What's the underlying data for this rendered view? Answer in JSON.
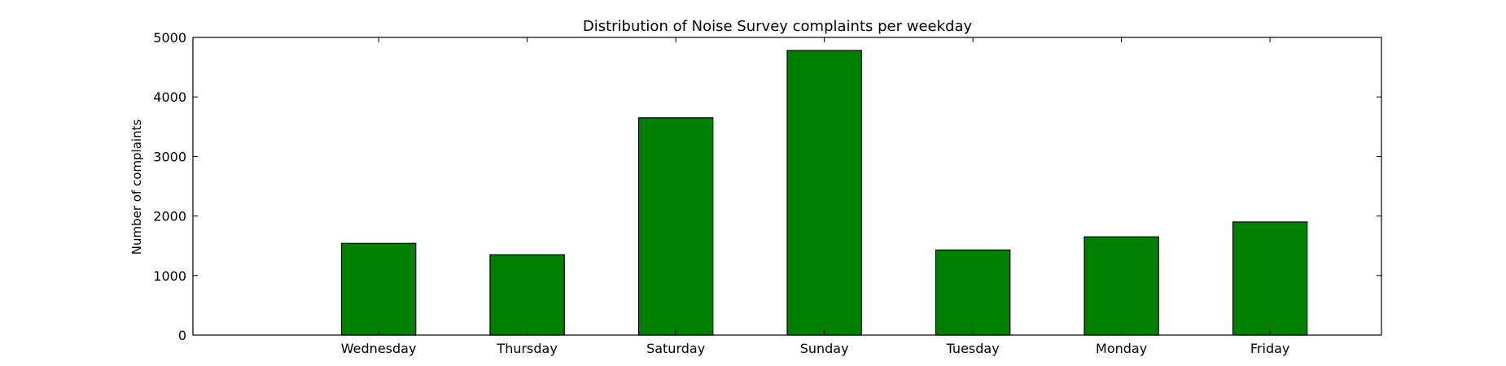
{
  "chart_data": {
    "type": "bar",
    "title": "Distribution of  Noise Survey complaints per weekday",
    "xlabel": "",
    "ylabel": "Number of complaints",
    "categories": [
      "Wednesday",
      "Thursday",
      "Saturday",
      "Sunday",
      "Tuesday",
      "Monday",
      "Friday"
    ],
    "values": [
      1540,
      1350,
      3650,
      4780,
      1430,
      1650,
      1900
    ],
    "ylim": [
      0,
      5000
    ],
    "yticks": [
      0,
      1000,
      2000,
      3000,
      4000,
      5000
    ],
    "xlim": [
      -1.25,
      6.75
    ],
    "grid": false,
    "bar_color": "#008000"
  }
}
